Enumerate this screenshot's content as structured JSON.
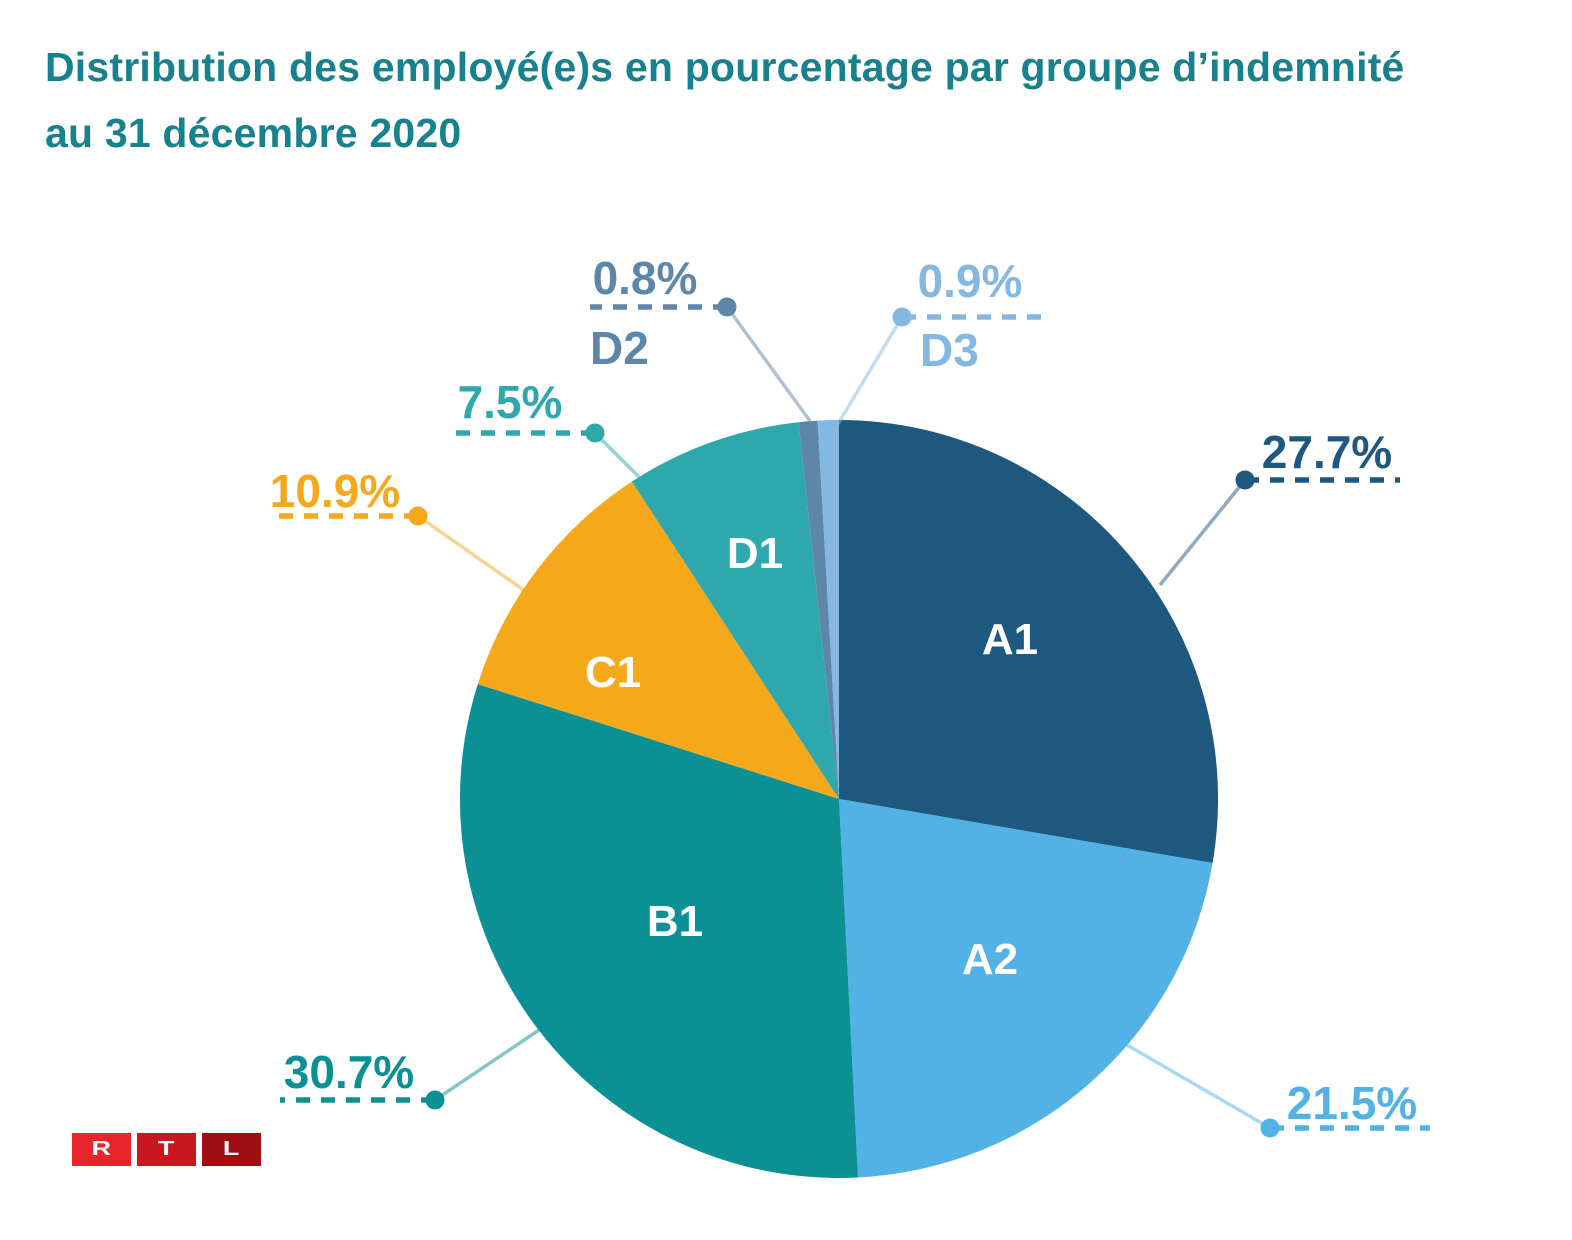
{
  "title": {
    "line1": "Distribution des employé(e)s en pourcentage par groupe d’indemnité",
    "line2": "au 31 décembre 2020",
    "color": "#17818E"
  },
  "chart_data": {
    "type": "pie",
    "title": "Distribution des employé(e)s en pourcentage par groupe d’indemnité au 31 décembre 2020",
    "unit": "percent",
    "start_angle_deg": 0,
    "direction": "clockwise",
    "inner_label_color": "#FFFFFF",
    "legend_position": "callouts",
    "slices": [
      {
        "label": "A1",
        "value": 27.7,
        "display": "27.7%",
        "color": "#1E587E"
      },
      {
        "label": "A2",
        "value": 21.5,
        "display": "21.5%",
        "color": "#52B2E6"
      },
      {
        "label": "B1",
        "value": 30.7,
        "display": "30.7%",
        "color": "#0B9094"
      },
      {
        "label": "C1",
        "value": 10.9,
        "display": "10.9%",
        "color": "#F6A81B"
      },
      {
        "label": "D1",
        "value": 7.5,
        "display": "7.5%",
        "color": "#2FA8AD"
      },
      {
        "label": "D2",
        "value": 0.8,
        "display": "0.8%",
        "color": "#5D86A8"
      },
      {
        "label": "D3",
        "value": 0.9,
        "display": "0.9%",
        "color": "#85B8E0"
      }
    ]
  },
  "logo": {
    "text": "RTL",
    "blocks": [
      {
        "letter": "R",
        "color": "#E8252B"
      },
      {
        "letter": "T",
        "color": "#C9171D"
      },
      {
        "letter": "L",
        "color": "#9E0E13"
      }
    ]
  }
}
